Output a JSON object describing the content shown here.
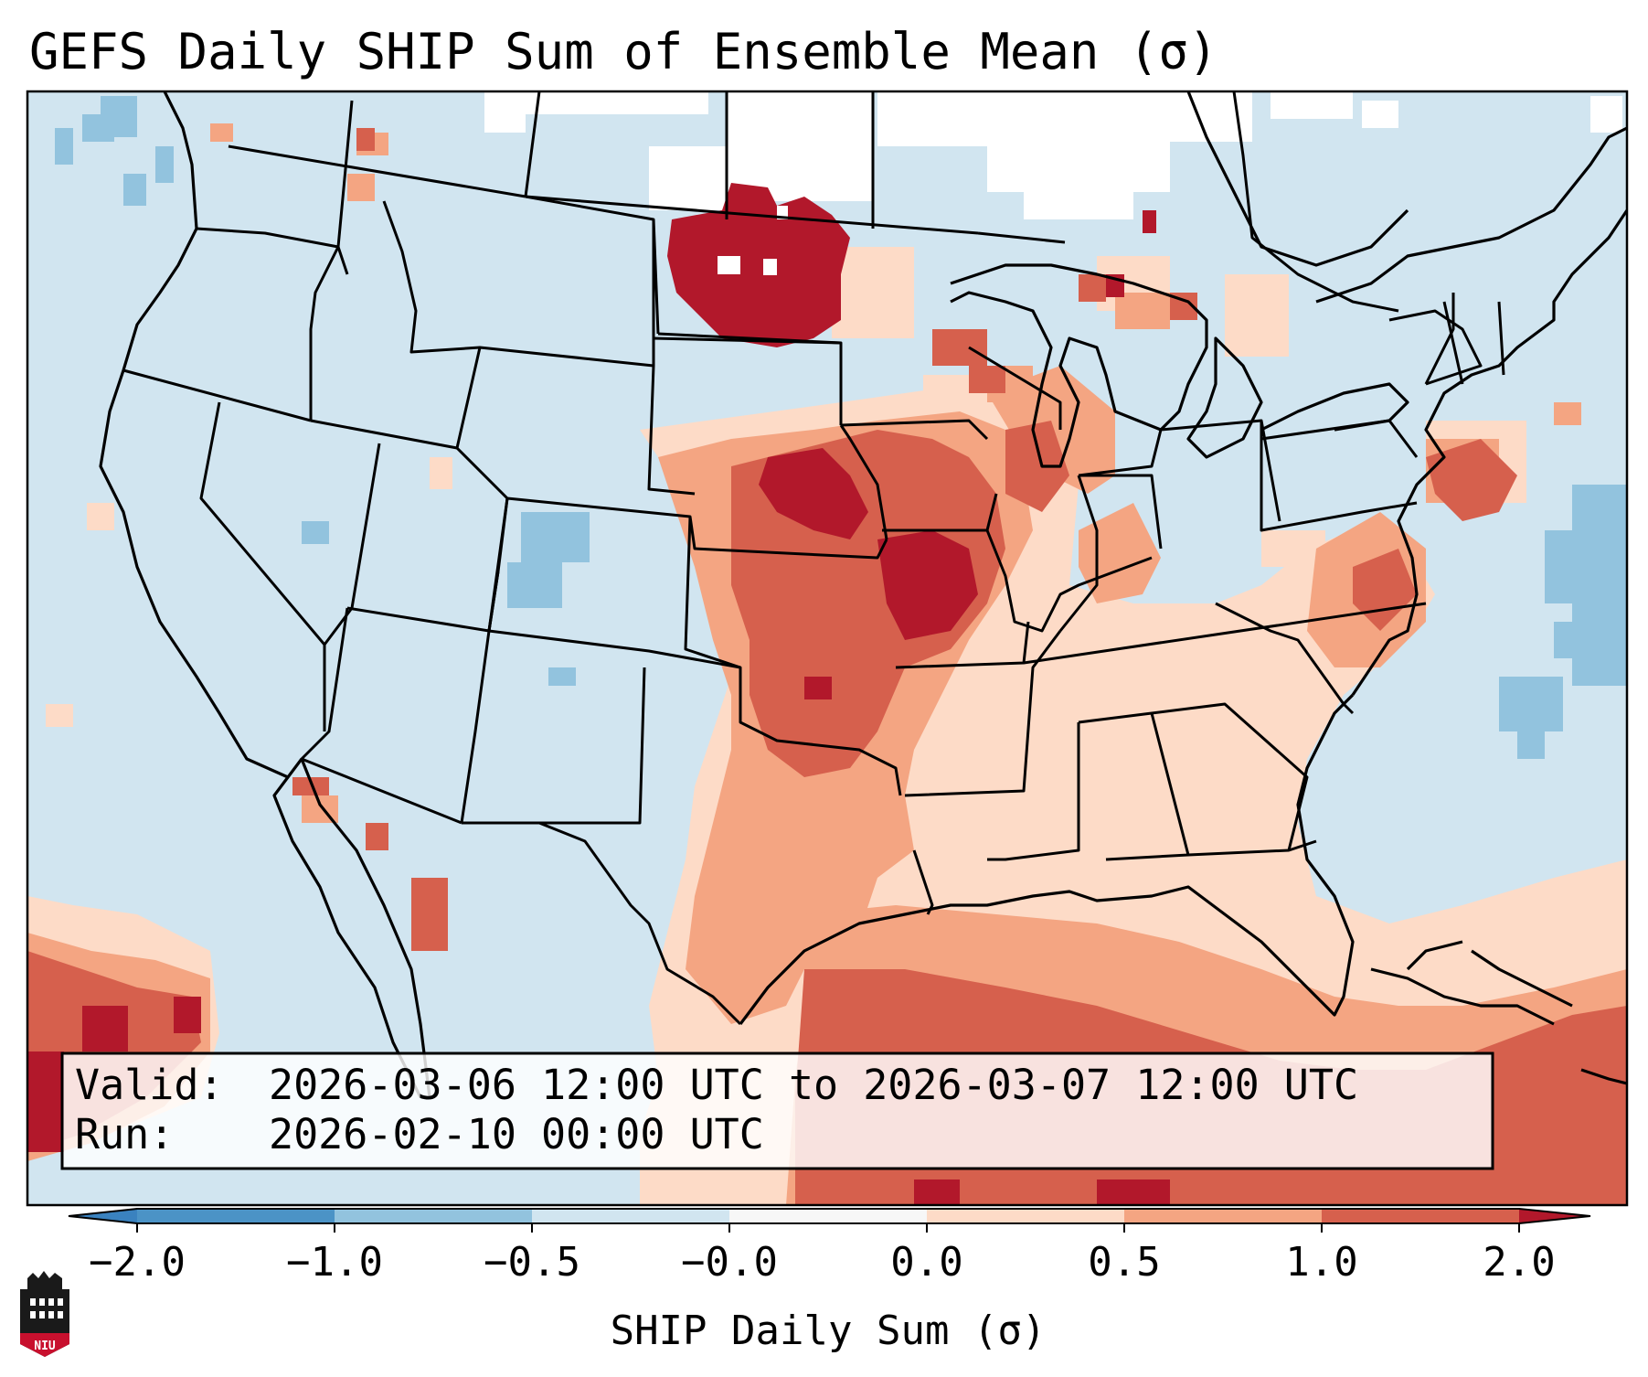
{
  "title": "GEFS Daily SHIP Sum of Ensemble Mean (σ)",
  "info_box": {
    "valid_label": "Valid:",
    "valid_value": "2026-03-06 12:00 UTC to 2026-03-07 12:00 UTC",
    "run_label": "Run:",
    "run_value": "2026-02-10 00:00 UTC"
  },
  "colorbar": {
    "label": "SHIP Daily Sum (σ)",
    "ticks": [
      "−2.0",
      "−1.0",
      "−0.5",
      "−0.0",
      "0.0",
      "0.5",
      "1.0",
      "2.0"
    ],
    "bins": [
      {
        "range": "below −2.0",
        "color": "#3a82bf"
      },
      {
        "range": "−2.0 to −1.0",
        "color": "#4b93c6"
      },
      {
        "range": "−1.0 to −0.5",
        "color": "#92c3de"
      },
      {
        "range": "−0.5 to 0.0",
        "color": "#d1e5f0"
      },
      {
        "range": "0.0",
        "color": "#f7f7f7"
      },
      {
        "range": "0.0 to 0.5",
        "color": "#fddbc7"
      },
      {
        "range": "0.5 to 1.0",
        "color": "#f4a582"
      },
      {
        "range": "1.0 to 2.0",
        "color": "#d6604d"
      },
      {
        "range": "above 2.0",
        "color": "#b2182b"
      }
    ]
  },
  "logo": {
    "text": "NIU"
  },
  "colors": {
    "background": "#d1e5f0",
    "no_signal": "#ffffff",
    "light_red": "#fddbc7",
    "medium_red": "#f4a582",
    "strong_red": "#d6604d",
    "max_red": "#b2182b",
    "light_blue": "#92c3de"
  }
}
